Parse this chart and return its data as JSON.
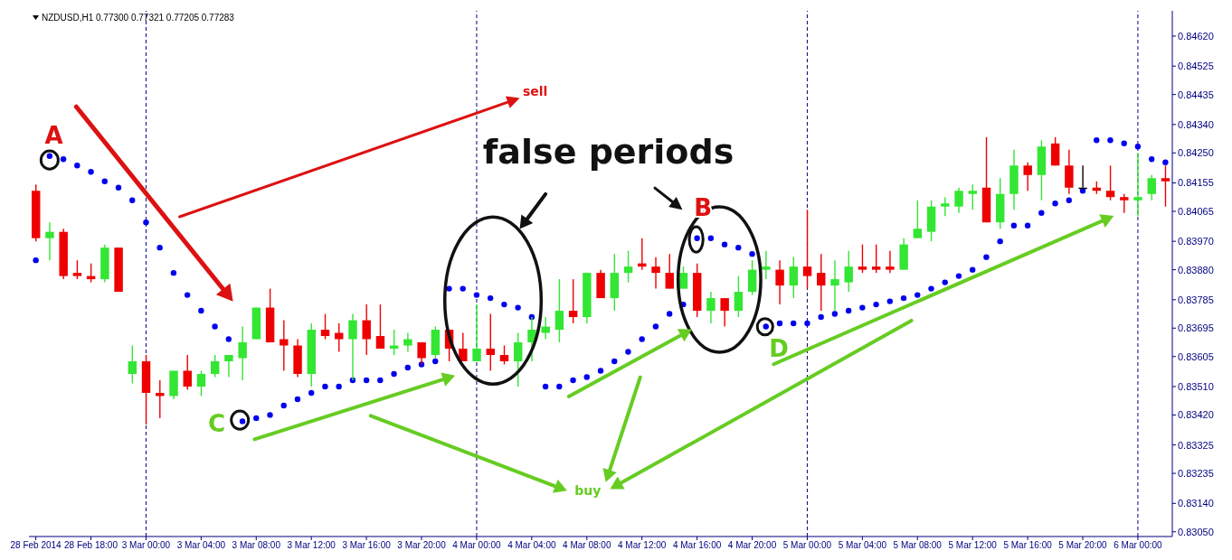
{
  "chart_data": {
    "type": "candlestick",
    "title": "NZDUSD,H1  0.77300 0.77321 0.77205 0.77283",
    "categories": [
      "28 Feb 2014",
      null,
      null,
      null,
      "28 Feb 18:00",
      null,
      null,
      null,
      "3 Mar 00:00",
      null,
      null,
      null,
      "3 Mar 04:00",
      null,
      null,
      null,
      "3 Mar 08:00",
      null,
      null,
      null,
      "3 Mar 12:00",
      null,
      null,
      null,
      "3 Mar 16:00",
      null,
      null,
      null,
      "3 Mar 20:00",
      null,
      null,
      null,
      "4 Mar 00:00",
      null,
      null,
      null,
      "4 Mar 04:00",
      null,
      null,
      null,
      "4 Mar 08:00",
      null,
      null,
      null,
      "4 Mar 12:00",
      null,
      null,
      null,
      "4 Mar 16:00",
      null,
      null,
      null,
      "4 Mar 20:00",
      null,
      null,
      null,
      "5 Mar 00:00",
      null,
      null,
      null,
      "5 Mar 04:00",
      null,
      null,
      null,
      "5 Mar 08:00",
      null,
      null,
      null,
      "5 Mar 12:00",
      null,
      null,
      null,
      "5 Mar 16:00",
      null,
      null,
      null,
      "5 Mar 20:00",
      null,
      null,
      null,
      "6 Mar 00:00",
      null,
      null
    ],
    "ohlc": [
      [
        0.8413,
        0.8415,
        0.8397,
        0.8398
      ],
      [
        0.8398,
        0.8403,
        0.8391,
        0.84
      ],
      [
        0.84,
        0.8401,
        0.8385,
        0.8386
      ],
      [
        0.8387,
        0.8391,
        0.8385,
        0.8386
      ],
      [
        0.8386,
        0.839,
        0.8384,
        0.8385
      ],
      [
        0.8385,
        0.8396,
        0.8384,
        0.8395
      ],
      [
        0.8395,
        0.8395,
        0.8381,
        0.8381
      ],
      [
        0.8355,
        0.8364,
        0.8352,
        0.8359
      ],
      [
        0.8359,
        0.8361,
        0.8339,
        0.8349
      ],
      [
        0.8349,
        0.8353,
        0.8341,
        0.8348
      ],
      [
        0.8348,
        0.8356,
        0.8347,
        0.8356
      ],
      [
        0.8356,
        0.8361,
        0.835,
        0.8351
      ],
      [
        0.8351,
        0.8356,
        0.8348,
        0.8355
      ],
      [
        0.8355,
        0.8361,
        0.8354,
        0.8359
      ],
      [
        0.8359,
        0.8361,
        0.8354,
        0.8361
      ],
      [
        0.836,
        0.837,
        0.8353,
        0.8365
      ],
      [
        0.8366,
        0.8376,
        0.8366,
        0.8376
      ],
      [
        0.8376,
        0.8382,
        0.8365,
        0.8365
      ],
      [
        0.8366,
        0.8372,
        0.8356,
        0.8364
      ],
      [
        0.8364,
        0.8366,
        0.8354,
        0.8355
      ],
      [
        0.8355,
        0.8371,
        0.8351,
        0.8369
      ],
      [
        0.8369,
        0.8374,
        0.8366,
        0.8367
      ],
      [
        0.8368,
        0.8371,
        0.8362,
        0.8366
      ],
      [
        0.8366,
        0.8374,
        0.8353,
        0.8372
      ],
      [
        0.8372,
        0.8377,
        0.8361,
        0.8366
      ],
      [
        0.8367,
        0.8377,
        0.8363,
        0.8363
      ],
      [
        0.8363,
        0.8369,
        0.8361,
        0.8364
      ],
      [
        0.8364,
        0.8368,
        0.8362,
        0.8366
      ],
      [
        0.8365,
        0.8365,
        0.8358,
        0.836
      ],
      [
        0.8361,
        0.837,
        0.836,
        0.8369
      ],
      [
        0.8369,
        0.8369,
        0.8359,
        0.8363
      ],
      [
        0.8363,
        0.8368,
        0.8359,
        0.8359
      ],
      [
        0.8359,
        0.8377,
        0.8359,
        0.8363
      ],
      [
        0.8363,
        0.8374,
        0.8356,
        0.8361
      ],
      [
        0.8361,
        0.8364,
        0.8358,
        0.8359
      ],
      [
        0.8359,
        0.8368,
        0.8351,
        0.8365
      ],
      [
        0.8365,
        0.8373,
        0.8359,
        0.8369
      ],
      [
        0.8368,
        0.8373,
        0.8366,
        0.837
      ],
      [
        0.8369,
        0.8385,
        0.8365,
        0.8375
      ],
      [
        0.8375,
        0.8385,
        0.8371,
        0.8373
      ],
      [
        0.8373,
        0.8387,
        0.8371,
        0.8387
      ],
      [
        0.8387,
        0.8388,
        0.8379,
        0.8379
      ],
      [
        0.8379,
        0.8393,
        0.8375,
        0.8387
      ],
      [
        0.8387,
        0.8394,
        0.8384,
        0.8389
      ],
      [
        0.839,
        0.8398,
        0.8388,
        0.8389
      ],
      [
        0.8389,
        0.8392,
        0.8382,
        0.8387
      ],
      [
        0.8387,
        0.8393,
        0.8382,
        0.8382
      ],
      [
        0.8382,
        0.8389,
        0.8382,
        0.8387
      ],
      [
        0.8387,
        0.839,
        0.8373,
        0.8375
      ],
      [
        0.8375,
        0.8381,
        0.8371,
        0.8379
      ],
      [
        0.8379,
        0.8379,
        0.837,
        0.8375
      ],
      [
        0.8375,
        0.8386,
        0.8373,
        0.8381
      ],
      [
        0.8381,
        0.8391,
        0.838,
        0.8388
      ],
      [
        0.8388,
        0.8394,
        0.8385,
        0.8389
      ],
      [
        0.8388,
        0.8391,
        0.8377,
        0.8383
      ],
      [
        0.8383,
        0.8392,
        0.8379,
        0.8389
      ],
      [
        0.8389,
        0.8407,
        0.8382,
        0.8386
      ],
      [
        0.8387,
        0.8393,
        0.8375,
        0.8383
      ],
      [
        0.8383,
        0.8391,
        0.8375,
        0.8385
      ],
      [
        0.8384,
        0.8394,
        0.8381,
        0.8389
      ],
      [
        0.8389,
        0.8396,
        0.8387,
        0.8388
      ],
      [
        0.8389,
        0.8396,
        0.8387,
        0.8388
      ],
      [
        0.8389,
        0.8394,
        0.8387,
        0.8388
      ],
      [
        0.8388,
        0.8398,
        0.8388,
        0.8396
      ],
      [
        0.8398,
        0.841,
        0.8398,
        0.8401
      ],
      [
        0.84,
        0.841,
        0.8397,
        0.8408
      ],
      [
        0.8408,
        0.8411,
        0.8405,
        0.8409
      ],
      [
        0.8408,
        0.8414,
        0.8406,
        0.8413
      ],
      [
        0.8412,
        0.8415,
        0.8407,
        0.8413
      ],
      [
        0.8414,
        0.843,
        0.8403,
        0.8403
      ],
      [
        0.8403,
        0.8417,
        0.8401,
        0.8412
      ],
      [
        0.8412,
        0.8426,
        0.8407,
        0.8421
      ],
      [
        0.8421,
        0.8422,
        0.8413,
        0.8418
      ],
      [
        0.8418,
        0.8429,
        0.841,
        0.8427
      ],
      [
        0.8428,
        0.843,
        0.8421,
        0.8421
      ],
      [
        0.8421,
        0.8426,
        0.8412,
        0.8414
      ],
      [
        0.8414,
        0.8421,
        0.8414,
        0.8414
      ],
      [
        0.8414,
        0.8416,
        0.8412,
        0.8413
      ],
      [
        0.8413,
        0.8421,
        0.841,
        0.8411
      ],
      [
        0.8411,
        0.8412,
        0.8406,
        0.841
      ],
      [
        0.841,
        0.8425,
        0.8405,
        0.8411
      ],
      [
        0.8412,
        0.8418,
        0.841,
        0.8417
      ],
      [
        0.8417,
        0.8421,
        0.8408,
        0.8416
      ]
    ],
    "colors": [
      "#ee0000",
      "#33e633",
      "#ee0000",
      "#ee0000",
      "#ee0000",
      "#33e633",
      "#ee0000",
      "#33e633",
      "#ee0000",
      "#ee0000",
      "#33e633",
      "#ee0000",
      "#33e633",
      "#33e633",
      "#33e633",
      "#33e633",
      "#33e633",
      "#ee0000",
      "#ee0000",
      "#ee0000",
      "#33e633",
      "#ee0000",
      "#ee0000",
      "#33e633",
      "#ee0000",
      "#ee0000",
      "#33e633",
      "#33e633",
      "#ee0000",
      "#33e633",
      "#ee0000",
      "#ee0000",
      "#33e633",
      "#ee0000",
      "#ee0000",
      "#33e633",
      "#33e633",
      "#33e633",
      "#33e633",
      "#ee0000",
      "#33e633",
      "#ee0000",
      "#33e633",
      "#33e633",
      "#ee0000",
      "#ee0000",
      "#ee0000",
      "#33e633",
      "#ee0000",
      "#33e633",
      "#ee0000",
      "#33e633",
      "#33e633",
      "#33e633",
      "#ee0000",
      "#33e633",
      "#ee0000",
      "#ee0000",
      "#33e633",
      "#33e633",
      "#ee0000",
      "#ee0000",
      "#ee0000",
      "#33e633",
      "#33e633",
      "#33e633",
      "#33e633",
      "#33e633",
      "#33e633",
      "#ee0000",
      "#33e633",
      "#33e633",
      "#ee0000",
      "#33e633",
      "#ee0000",
      "#ee0000",
      "#000000",
      "#ee0000",
      "#ee0000",
      "#ee0000",
      "#33e633",
      "#33e633",
      "#ee0000"
    ],
    "series": [
      {
        "type": "scatter",
        "color": "#0000ee",
        "values": [
          0.8391,
          0.8424,
          0.8423,
          0.8421,
          0.8419,
          0.8416,
          0.8414,
          0.841,
          0.8403,
          0.8395,
          0.8387,
          0.838,
          0.8375,
          0.837,
          0.8366,
          0.834,
          0.8341,
          0.8342,
          0.8345,
          0.8347,
          0.8349,
          0.8351,
          0.8351,
          0.8353,
          0.8353,
          0.8353,
          0.8355,
          0.8357,
          0.8358,
          0.8359,
          0.8382,
          0.8382,
          0.838,
          0.8379,
          0.8377,
          0.8376,
          0.8373,
          0.8351,
          0.8351,
          0.8353,
          0.8354,
          0.8356,
          0.8359,
          0.8362,
          0.8366,
          0.837,
          0.8374,
          0.8377,
          0.8398,
          0.8398,
          0.8396,
          0.8395,
          0.8393,
          0.837,
          0.8371,
          0.8371,
          0.8371,
          0.8373,
          0.8374,
          0.8375,
          0.8376,
          0.8377,
          0.8378,
          0.8379,
          0.838,
          0.8382,
          0.8384,
          0.8386,
          0.8388,
          0.8392,
          0.8397,
          0.8402,
          0.8402,
          0.8406,
          0.8409,
          0.841,
          0.8413,
          0.8429,
          0.8429,
          0.8428,
          0.8427,
          0.8423,
          0.8422
        ]
      }
    ],
    "marker": "circle",
    "ylim": [
      0.83035,
      0.847
    ],
    "yticks": [
      {
        "value": 0.8462,
        "label": "0.84620"
      },
      {
        "value": 0.84525,
        "label": "0.84525"
      },
      {
        "value": 0.84435,
        "label": "0.84435"
      },
      {
        "value": 0.8434,
        "label": "0.84340"
      },
      {
        "value": 0.8425,
        "label": "0.84250"
      },
      {
        "value": 0.84155,
        "label": "0.84155"
      },
      {
        "value": 0.84065,
        "label": "0.84065"
      },
      {
        "value": 0.8397,
        "label": "0.83970"
      },
      {
        "value": 0.8388,
        "label": "0.83880"
      },
      {
        "value": 0.83785,
        "label": "0.83785"
      },
      {
        "value": 0.83695,
        "label": "0.83695"
      },
      {
        "value": 0.83605,
        "label": "0.83605"
      },
      {
        "value": 0.8351,
        "label": "0.83510"
      },
      {
        "value": 0.8342,
        "label": "0.83420"
      },
      {
        "value": 0.83325,
        "label": "0.83325"
      },
      {
        "value": 0.83235,
        "label": "0.83235"
      },
      {
        "value": 0.8314,
        "label": "0.83140"
      },
      {
        "value": 0.8305,
        "label": "0.83050"
      }
    ],
    "ref_lines": [
      {
        "axis": "x",
        "value": "3 Mar 00:00",
        "color": "#000080",
        "line_style": "dashed"
      },
      {
        "axis": "x",
        "value": "4 Mar 00:00",
        "color": "#000080",
        "line_style": "dashed"
      },
      {
        "axis": "x",
        "value": "5 Mar 00:00",
        "color": "#000080",
        "line_style": "dashed"
      },
      {
        "axis": "x",
        "value": "6 Mar 00:00",
        "color": "#000080",
        "line_style": "dashed"
      }
    ],
    "annotations": [
      "A",
      "B",
      "C",
      "D",
      "sell",
      "buy",
      "false periods"
    ]
  }
}
